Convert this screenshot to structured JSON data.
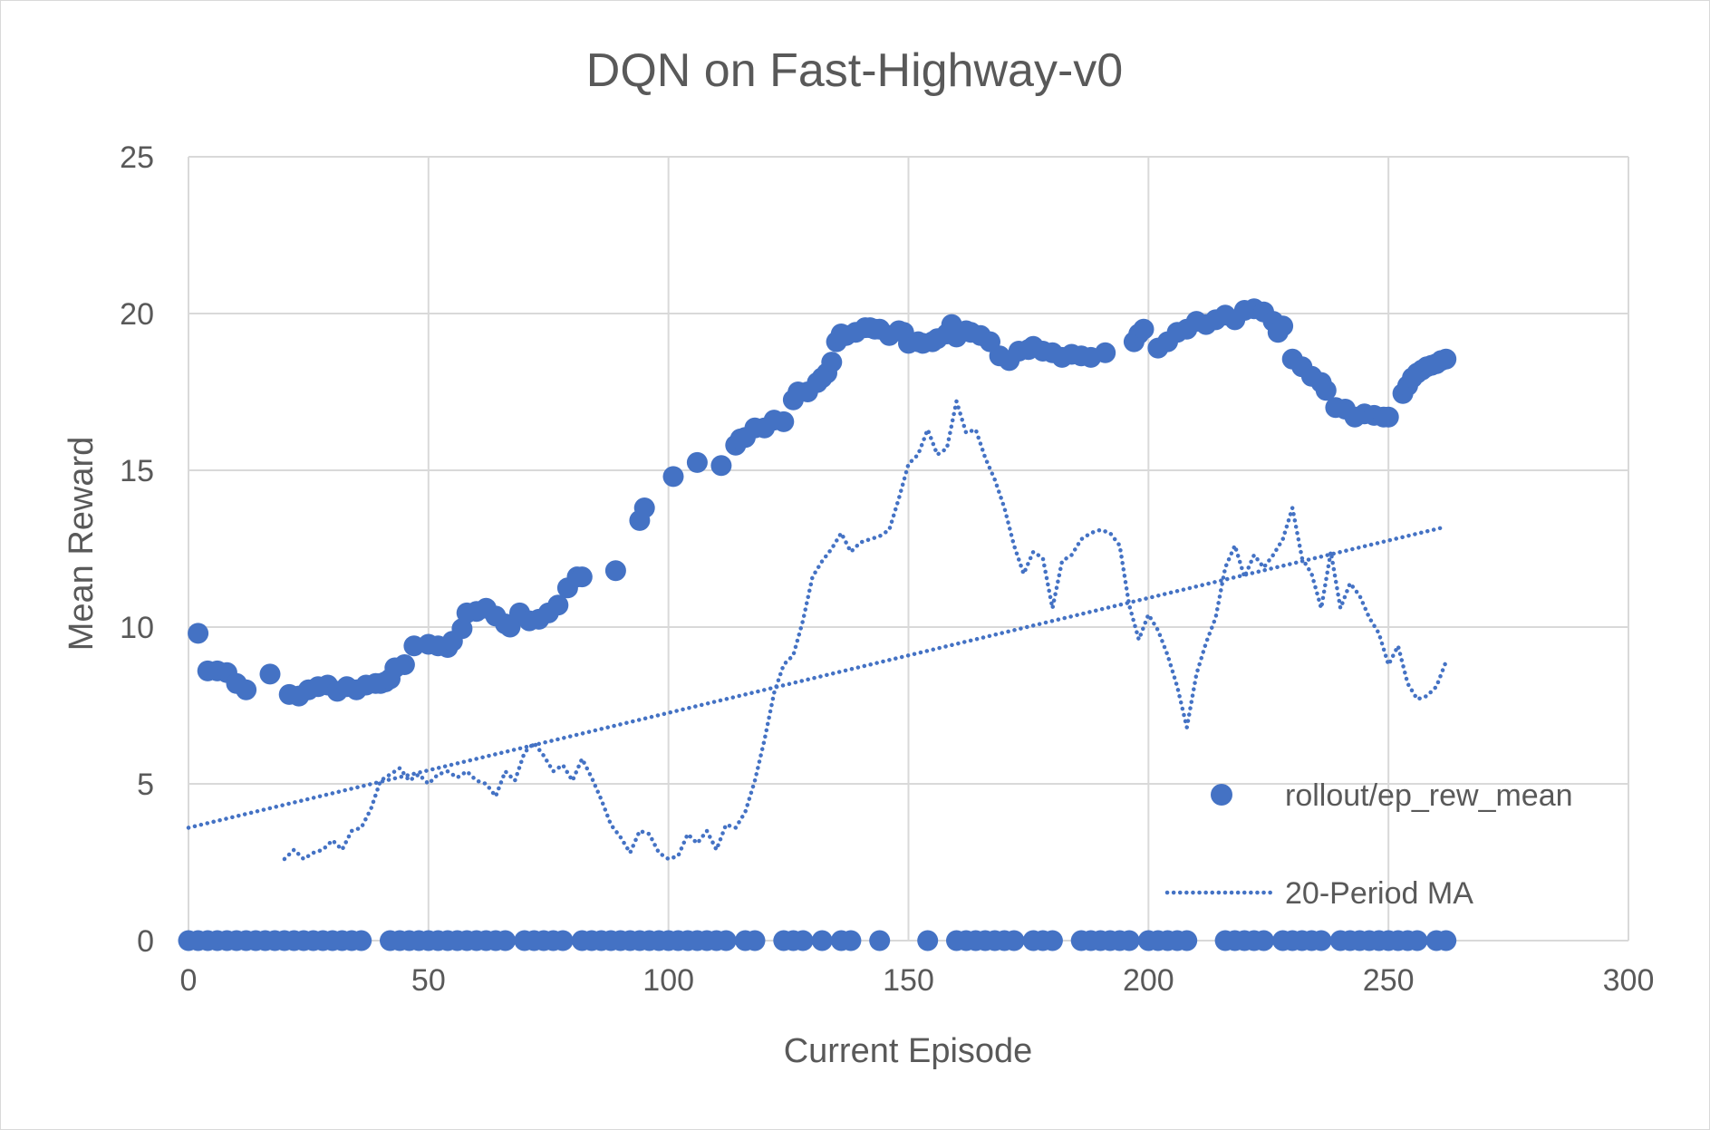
{
  "chart_data": {
    "type": "scatter",
    "title": "DQN on Fast-Highway-v0",
    "xlabel": "Current Episode",
    "ylabel": "Mean Reward",
    "xlim": [
      0,
      300
    ],
    "ylim": [
      0,
      25
    ],
    "x_ticks": [
      0,
      50,
      100,
      150,
      200,
      250,
      300
    ],
    "y_ticks": [
      0,
      5,
      10,
      15,
      20,
      25
    ],
    "x_tick_labels": [
      "0",
      "50",
      "100",
      "150",
      "200",
      "250",
      "300"
    ],
    "y_tick_labels": [
      "0",
      "5",
      "10",
      "15",
      "20",
      "25"
    ],
    "grid": true,
    "legend_position": "bottom-right",
    "colors": {
      "series": "#4472c4",
      "grid": "#d9d9d9",
      "text": "#595959"
    },
    "series": [
      {
        "name": "rollout/ep_rew_mean",
        "marker": "circle",
        "x": [
          2,
          4,
          6,
          8,
          10,
          12,
          17,
          21,
          23,
          25,
          27,
          29,
          31,
          33,
          35,
          37,
          39,
          40,
          41,
          42,
          43,
          45,
          47,
          50,
          52,
          54,
          55,
          57,
          58,
          60,
          62,
          64,
          66,
          67,
          69,
          71,
          73,
          75,
          77,
          79,
          81,
          82,
          89,
          94,
          95,
          101,
          106,
          111,
          114,
          115,
          116,
          118,
          120,
          122,
          124,
          126,
          127,
          129,
          131,
          132,
          133,
          134,
          135,
          136,
          137,
          139,
          141,
          142,
          143,
          144,
          146,
          148,
          149,
          150,
          152,
          153,
          155,
          156,
          158,
          159,
          160,
          162,
          163,
          165,
          167,
          169,
          171,
          173,
          175,
          176,
          178,
          180,
          182,
          184,
          186,
          188,
          191,
          197,
          198,
          199,
          202,
          204,
          206,
          208,
          210,
          212,
          214,
          216,
          218,
          220,
          222,
          224,
          226,
          227,
          228,
          230,
          232,
          234,
          236,
          237,
          239,
          241,
          243,
          245,
          247,
          249,
          250,
          253,
          254,
          255,
          256,
          257,
          258,
          259,
          260,
          261,
          262
        ],
        "y": [
          9.8,
          8.6,
          8.6,
          8.55,
          8.2,
          8.0,
          8.5,
          7.85,
          7.8,
          8.0,
          8.1,
          8.15,
          7.95,
          8.1,
          8.0,
          8.15,
          8.2,
          8.2,
          8.25,
          8.35,
          8.7,
          8.8,
          9.4,
          9.45,
          9.4,
          9.35,
          9.55,
          9.95,
          10.45,
          10.5,
          10.6,
          10.35,
          10.1,
          10.0,
          10.45,
          10.2,
          10.25,
          10.45,
          10.7,
          11.25,
          11.6,
          11.6,
          11.8,
          13.4,
          13.8,
          14.8,
          15.25,
          15.15,
          15.8,
          16.0,
          16.05,
          16.35,
          16.35,
          16.6,
          16.55,
          17.25,
          17.5,
          17.5,
          17.8,
          17.95,
          18.1,
          18.45,
          19.1,
          19.35,
          19.3,
          19.4,
          19.55,
          19.55,
          19.5,
          19.5,
          19.3,
          19.45,
          19.4,
          19.05,
          19.1,
          19.05,
          19.1,
          19.2,
          19.35,
          19.65,
          19.25,
          19.45,
          19.4,
          19.3,
          19.1,
          18.65,
          18.5,
          18.8,
          18.85,
          18.95,
          18.8,
          18.75,
          18.6,
          18.7,
          18.65,
          18.6,
          18.75,
          19.1,
          19.35,
          19.5,
          18.9,
          19.1,
          19.4,
          19.5,
          19.75,
          19.65,
          19.8,
          19.95,
          19.8,
          20.1,
          20.15,
          20.05,
          19.75,
          19.4,
          19.6,
          18.55,
          18.3,
          18.0,
          17.8,
          17.55,
          17.0,
          16.95,
          16.7,
          16.8,
          16.75,
          16.7,
          16.7,
          17.45,
          17.7,
          17.95,
          18.1,
          18.2,
          18.3,
          18.35,
          18.4,
          18.5,
          18.55
        ]
      },
      {
        "name": "rollout/ep_rew_mean",
        "marker": "circle",
        "x": [
          0,
          2,
          4,
          6,
          8,
          10,
          12,
          14,
          16,
          18,
          20,
          22,
          24,
          26,
          28,
          30,
          32,
          34,
          36,
          42,
          44,
          46,
          48,
          50,
          52,
          54,
          56,
          58,
          60,
          62,
          64,
          66,
          70,
          72,
          74,
          76,
          78,
          82,
          84,
          86,
          88,
          90,
          92,
          94,
          96,
          98,
          100,
          102,
          104,
          106,
          108,
          110,
          112,
          116,
          118,
          124,
          126,
          128,
          132,
          136,
          138,
          144,
          154,
          160,
          162,
          164,
          166,
          168,
          170,
          172,
          176,
          178,
          180,
          186,
          188,
          190,
          192,
          194,
          196,
          200,
          202,
          204,
          206,
          208,
          216,
          218,
          220,
          222,
          224,
          228,
          230,
          232,
          234,
          236,
          240,
          242,
          244,
          246,
          248,
          250,
          252,
          254,
          256,
          260,
          262
        ],
        "y": [
          0,
          0,
          0,
          0,
          0,
          0,
          0,
          0,
          0,
          0,
          0,
          0,
          0,
          0,
          0,
          0,
          0,
          0,
          0,
          0,
          0,
          0,
          0,
          0,
          0,
          0,
          0,
          0,
          0,
          0,
          0,
          0,
          0,
          0,
          0,
          0,
          0,
          0,
          0,
          0,
          0,
          0,
          0,
          0,
          0,
          0,
          0,
          0,
          0,
          0,
          0,
          0,
          0,
          0,
          0,
          0,
          0,
          0,
          0,
          0,
          0,
          0,
          0,
          0,
          0,
          0,
          0,
          0,
          0,
          0,
          0,
          0,
          0,
          0,
          0,
          0,
          0,
          0,
          0,
          0,
          0,
          0,
          0,
          0,
          0,
          0,
          0,
          0,
          0,
          0,
          0,
          0,
          0,
          0,
          0,
          0,
          0,
          0,
          0,
          0,
          0,
          0,
          0,
          0,
          0
        ]
      },
      {
        "name": "20-Period MA",
        "line_style": "dotted",
        "x": [
          20,
          22,
          24,
          26,
          28,
          30,
          32,
          34,
          36,
          38,
          40,
          42,
          44,
          46,
          48,
          50,
          52,
          54,
          56,
          58,
          60,
          62,
          64,
          66,
          68,
          70,
          72,
          74,
          76,
          78,
          80,
          82,
          84,
          86,
          88,
          90,
          92,
          94,
          96,
          98,
          100,
          102,
          104,
          106,
          108,
          110,
          112,
          114,
          116,
          118,
          120,
          122,
          124,
          126,
          128,
          130,
          132,
          134,
          136,
          138,
          140,
          142,
          144,
          146,
          148,
          150,
          152,
          154,
          156,
          158,
          160,
          162,
          164,
          166,
          168,
          170,
          172,
          174,
          176,
          178,
          180,
          182,
          184,
          186,
          188,
          190,
          192,
          194,
          196,
          198,
          200,
          202,
          204,
          206,
          208,
          210,
          212,
          214,
          216,
          218,
          220,
          222,
          224,
          226,
          228,
          230,
          232,
          234,
          236,
          238,
          240,
          242,
          244,
          246,
          248,
          250,
          252,
          254,
          256,
          258,
          260,
          262
        ],
        "y": [
          2.6,
          2.9,
          2.6,
          2.8,
          2.9,
          3.2,
          2.9,
          3.5,
          3.6,
          4.2,
          5.1,
          5.3,
          5.5,
          5.1,
          5.3,
          5.0,
          5.3,
          5.4,
          5.2,
          5.4,
          5.1,
          5.0,
          4.6,
          5.4,
          5.1,
          6.0,
          6.3,
          5.9,
          5.4,
          5.6,
          5.1,
          5.8,
          5.2,
          4.5,
          3.7,
          3.3,
          2.8,
          3.5,
          3.4,
          2.8,
          2.6,
          2.7,
          3.4,
          3.1,
          3.5,
          2.9,
          3.7,
          3.6,
          4.1,
          5.1,
          6.4,
          7.9,
          8.8,
          9.1,
          10.2,
          11.6,
          12.1,
          12.5,
          13.0,
          12.4,
          12.7,
          12.8,
          12.9,
          13.1,
          14.1,
          15.2,
          15.5,
          16.3,
          15.5,
          15.7,
          17.2,
          16.2,
          16.3,
          15.4,
          14.7,
          13.8,
          12.6,
          11.7,
          12.4,
          12.2,
          10.6,
          12.1,
          12.3,
          12.8,
          13.0,
          13.1,
          13.0,
          12.6,
          10.7,
          9.6,
          10.4,
          9.9,
          9.1,
          8.1,
          6.8,
          8.5,
          9.5,
          10.3,
          11.9,
          12.6,
          11.6,
          12.3,
          11.9,
          12.3,
          12.8,
          13.8,
          12.2,
          11.7,
          10.6,
          12.4,
          10.6,
          11.4,
          11.0,
          10.3,
          9.8,
          8.8,
          9.4,
          8.2,
          7.7,
          7.8,
          8.1,
          8.9
        ]
      },
      {
        "name": "",
        "line_style": "dotted",
        "trendline": true,
        "x": [
          0,
          262
        ],
        "y": [
          3.6,
          13.2
        ]
      }
    ],
    "legend": [
      {
        "label": "rollout/ep_rew_mean",
        "marker": "circle"
      },
      {
        "label": "20-Period MA",
        "marker": "dotted-line"
      }
    ]
  }
}
